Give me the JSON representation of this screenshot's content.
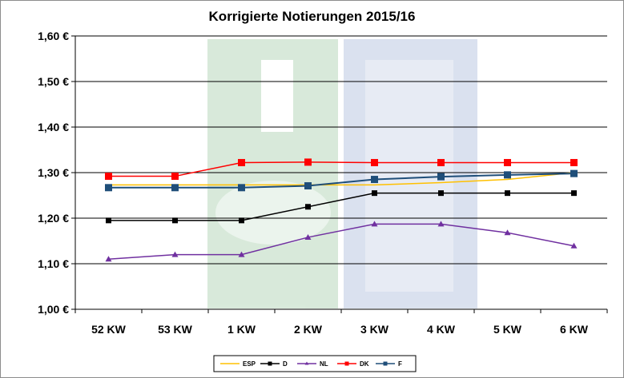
{
  "chart_data": {
    "type": "line",
    "title": "Korrigierte Notierungen 2015/16",
    "categories": [
      "52 KW",
      "53 KW",
      "1 KW",
      "2 KW",
      "3 KW",
      "4 KW",
      "5 KW",
      "6 KW"
    ],
    "ylim": [
      1.0,
      1.6
    ],
    "yticks": [
      1.0,
      1.1,
      1.2,
      1.3,
      1.4,
      1.5,
      1.6
    ],
    "ytick_labels": [
      "1,00 €",
      "1,10 €",
      "1,20 €",
      "1,30 €",
      "1,40 €",
      "1,50 €",
      "1,60 €"
    ],
    "xlabel": "",
    "ylabel": "",
    "grid": true,
    "legend_position": "bottom",
    "series": [
      {
        "name": "ESP",
        "color": "#FFC000",
        "marker": "none",
        "values": [
          1.273,
          1.273,
          1.273,
          1.273,
          1.273,
          1.278,
          1.285,
          1.3
        ]
      },
      {
        "name": "D",
        "color": "#000000",
        "marker": "square",
        "values": [
          1.195,
          1.195,
          1.195,
          1.225,
          1.255,
          1.255,
          1.255,
          1.255
        ]
      },
      {
        "name": "NL",
        "color": "#7030A0",
        "marker": "triangle",
        "values": [
          1.11,
          1.12,
          1.12,
          1.158,
          1.187,
          1.187,
          1.168,
          1.139
        ]
      },
      {
        "name": "DK",
        "color": "#FF0000",
        "marker": "square",
        "values": [
          1.292,
          1.292,
          1.322,
          1.323,
          1.322,
          1.322,
          1.322,
          1.322
        ]
      },
      {
        "name": "F",
        "color": "#1F4E79",
        "marker": "square",
        "values": [
          1.267,
          1.267,
          1.267,
          1.271,
          1.285,
          1.291,
          1.295,
          1.298
        ]
      }
    ]
  }
}
